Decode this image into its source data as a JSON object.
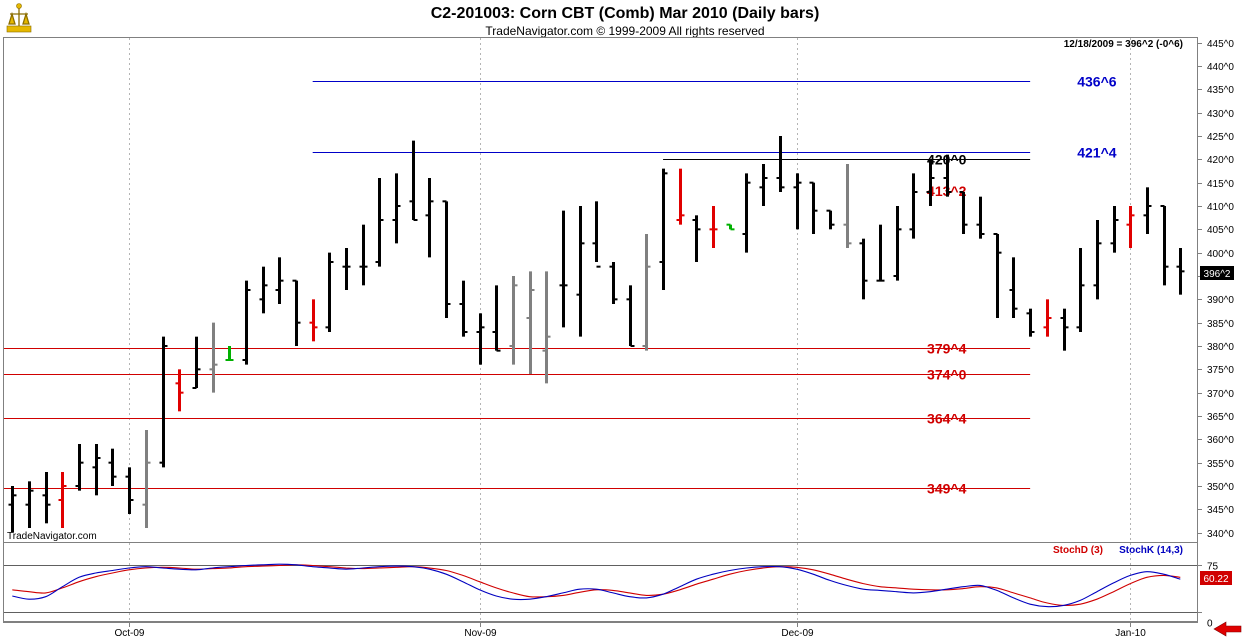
{
  "header": {
    "title": "C2-201003:  Corn CBT (Comb) Mar 2010  (Daily bars)",
    "subtitle": "TradeNavigator.com © 1999-2009 All rights reserved",
    "watermark": "TradeNavigator.com",
    "last_info": "12/18/2009 = 396^2 (-0^6)",
    "last_badge": "396^2"
  },
  "stoch_legend": {
    "d": "StochD (3)",
    "k": "StochK (14,3)",
    "d_color": "#d00000",
    "k_color": "#0000c0"
  },
  "colors": {
    "grid": "#b4b4b4",
    "blue_level": "#0000c8",
    "red_level": "#d00000",
    "black_level": "#000000",
    "bar_black": "#000000",
    "bar_red": "#e00000",
    "bar_gray": "#808080",
    "bar_green": "#00b000"
  },
  "chart_data": [
    {
      "type": "ohlc",
      "title": "C2-201003:  Corn CBT (Comb) Mar 2010  (Daily bars)",
      "y_axis_ticks": [
        "340^0",
        "345^0",
        "350^0",
        "355^0",
        "360^0",
        "365^0",
        "370^0",
        "375^0",
        "380^0",
        "385^0",
        "390^0",
        "395^0",
        "400^0",
        "405^0",
        "410^0",
        "415^0",
        "420^0",
        "425^0",
        "430^0",
        "435^0",
        "440^0",
        "445^0"
      ],
      "ylim": [
        338,
        446
      ],
      "x_axis_labels": [
        {
          "label": "Oct-09",
          "x": 7
        },
        {
          "label": "Nov-09",
          "x": 28
        },
        {
          "label": "Dec-09",
          "x": 47
        },
        {
          "label": "Jan-10",
          "x": 67
        }
      ],
      "xlim": [
        -0.5,
        71
      ],
      "levels": [
        {
          "label": "436^6",
          "value": 436.75,
          "color": "blue",
          "x_from": 18
        },
        {
          "label": "421^4",
          "value": 421.5,
          "color": "blue",
          "x_from": 18
        },
        {
          "label": "420^0",
          "value": 420.0,
          "color": "black",
          "x_from": 39
        },
        {
          "label": "413^2",
          "value": null,
          "color": "red",
          "x_from": null
        },
        {
          "label": "379^4",
          "value": 379.5,
          "color": "red",
          "x_from": -0.5
        },
        {
          "label": "374^0",
          "value": 374.0,
          "color": "red",
          "x_from": -0.5
        },
        {
          "label": "364^4",
          "value": 364.5,
          "color": "red",
          "x_from": -0.5
        },
        {
          "label": "349^4",
          "value": 349.5,
          "color": "red",
          "x_from": -0.5
        }
      ],
      "bars": [
        {
          "o": 346,
          "h": 350,
          "l": 340,
          "c": 348,
          "col": "black"
        },
        {
          "o": 346,
          "h": 351,
          "l": 341,
          "c": 349,
          "col": "black"
        },
        {
          "o": 348,
          "h": 353,
          "l": 342,
          "c": 346,
          "col": "black"
        },
        {
          "o": 347,
          "h": 353,
          "l": 341,
          "c": 350,
          "col": "red"
        },
        {
          "o": 350,
          "h": 359,
          "l": 349,
          "c": 355,
          "col": "black"
        },
        {
          "o": 354,
          "h": 359,
          "l": 348,
          "c": 356,
          "col": "black"
        },
        {
          "o": 355,
          "h": 358,
          "l": 350,
          "c": 352,
          "col": "black"
        },
        {
          "o": 352,
          "h": 354,
          "l": 344,
          "c": 347,
          "col": "black"
        },
        {
          "o": 346,
          "h": 362,
          "l": 341,
          "c": 355,
          "col": "gray"
        },
        {
          "o": 355,
          "h": 382,
          "l": 354,
          "c": 380,
          "col": "black"
        },
        {
          "o": 372,
          "h": 375,
          "l": 366,
          "c": 370,
          "col": "red"
        },
        {
          "o": 371,
          "h": 382,
          "l": 371,
          "c": 375,
          "col": "black"
        },
        {
          "o": 375,
          "h": 385,
          "l": 370,
          "c": 376,
          "col": "gray"
        },
        {
          "o": 377,
          "h": 380,
          "l": 377,
          "c": 377,
          "col": "green"
        },
        {
          "o": 377,
          "h": 394,
          "l": 376,
          "c": 392,
          "col": "black"
        },
        {
          "o": 390,
          "h": 397,
          "l": 387,
          "c": 393,
          "col": "black"
        },
        {
          "o": 392,
          "h": 399,
          "l": 389,
          "c": 394,
          "col": "black"
        },
        {
          "o": 394,
          "h": 394,
          "l": 380,
          "c": 385,
          "col": "black"
        },
        {
          "o": 385,
          "h": 390,
          "l": 381,
          "c": 384,
          "col": "red"
        },
        {
          "o": 384,
          "h": 400,
          "l": 383,
          "c": 398,
          "col": "black"
        },
        {
          "o": 397,
          "h": 401,
          "l": 392,
          "c": 397,
          "col": "black"
        },
        {
          "o": 397,
          "h": 406,
          "l": 393,
          "c": 397,
          "col": "black"
        },
        {
          "o": 398,
          "h": 416,
          "l": 397,
          "c": 407,
          "col": "black"
        },
        {
          "o": 407,
          "h": 417,
          "l": 402,
          "c": 410,
          "col": "black"
        },
        {
          "o": 411,
          "h": 424,
          "l": 407,
          "c": 407,
          "col": "black"
        },
        {
          "o": 408,
          "h": 416,
          "l": 399,
          "c": 411,
          "col": "black"
        },
        {
          "o": 411,
          "h": 411,
          "l": 386,
          "c": 389,
          "col": "black"
        },
        {
          "o": 389,
          "h": 394,
          "l": 382,
          "c": 383,
          "col": "black"
        },
        {
          "o": 383,
          "h": 387,
          "l": 376,
          "c": 384,
          "col": "black"
        },
        {
          "o": 383,
          "h": 393,
          "l": 379,
          "c": 379,
          "col": "black"
        },
        {
          "o": 380,
          "h": 395,
          "l": 376,
          "c": 393,
          "col": "gray"
        },
        {
          "o": 386,
          "h": 396,
          "l": 374,
          "c": 392,
          "col": "gray"
        },
        {
          "o": 379,
          "h": 396,
          "l": 372,
          "c": 382,
          "col": "gray"
        },
        {
          "o": 393,
          "h": 409,
          "l": 384,
          "c": 393,
          "col": "black"
        },
        {
          "o": 391,
          "h": 410,
          "l": 382,
          "c": 402,
          "col": "black"
        },
        {
          "o": 402,
          "h": 411,
          "l": 398,
          "c": 397,
          "col": "black"
        },
        {
          "o": 397,
          "h": 398,
          "l": 389,
          "c": 390,
          "col": "black"
        },
        {
          "o": 390,
          "h": 393,
          "l": 380,
          "c": 380,
          "col": "black"
        },
        {
          "o": 380,
          "h": 404,
          "l": 379,
          "c": 397,
          "col": "gray"
        },
        {
          "o": 398,
          "h": 418,
          "l": 392,
          "c": 417,
          "col": "black"
        },
        {
          "o": 407,
          "h": 418,
          "l": 406,
          "c": 408,
          "col": "red"
        },
        {
          "o": 407,
          "h": 408,
          "l": 398,
          "c": 405,
          "col": "black"
        },
        {
          "o": 405,
          "h": 410,
          "l": 401,
          "c": 405,
          "col": "red"
        },
        {
          "o": 406,
          "h": 406,
          "l": 405,
          "c": 405,
          "col": "green"
        },
        {
          "o": 404,
          "h": 417,
          "l": 400,
          "c": 415,
          "col": "black"
        },
        {
          "o": 414,
          "h": 419,
          "l": 410,
          "c": 416,
          "col": "black"
        },
        {
          "o": 416,
          "h": 425,
          "l": 413,
          "c": 414,
          "col": "black"
        },
        {
          "o": 414,
          "h": 417,
          "l": 405,
          "c": 415,
          "col": "black"
        },
        {
          "o": 415,
          "h": 415,
          "l": 404,
          "c": 409,
          "col": "black"
        },
        {
          "o": 409,
          "h": 409,
          "l": 405,
          "c": 406,
          "col": "black"
        },
        {
          "o": 406,
          "h": 419,
          "l": 401,
          "c": 402,
          "col": "gray"
        },
        {
          "o": 402,
          "h": 403,
          "l": 390,
          "c": 394,
          "col": "black"
        },
        {
          "o": 394,
          "h": 406,
          "l": 394,
          "c": 394,
          "col": "black"
        },
        {
          "o": 395,
          "h": 410,
          "l": 394,
          "c": 405,
          "col": "black"
        },
        {
          "o": 405,
          "h": 417,
          "l": 403,
          "c": 413,
          "col": "black"
        },
        {
          "o": 413,
          "h": 420,
          "l": 410,
          "c": 416,
          "col": "black"
        },
        {
          "o": 416,
          "h": 421,
          "l": 412,
          "c": 413,
          "col": "black"
        },
        {
          "o": 413,
          "h": 413,
          "l": 404,
          "c": 406,
          "col": "black"
        },
        {
          "o": 406,
          "h": 412,
          "l": 403,
          "c": 404,
          "col": "black"
        },
        {
          "o": 404,
          "h": 404,
          "l": 386,
          "c": 400,
          "col": "black"
        },
        {
          "o": 392,
          "h": 399,
          "l": 386,
          "c": 388,
          "col": "black"
        },
        {
          "o": 387,
          "h": 388,
          "l": 382,
          "c": 383,
          "col": "black"
        },
        {
          "o": 384,
          "h": 390,
          "l": 382,
          "c": 386,
          "col": "red"
        },
        {
          "o": 386,
          "h": 388,
          "l": 379,
          "c": 384,
          "col": "black"
        },
        {
          "o": 384,
          "h": 401,
          "l": 383,
          "c": 393,
          "col": "black"
        },
        {
          "o": 393,
          "h": 407,
          "l": 390,
          "c": 402,
          "col": "black"
        },
        {
          "o": 402,
          "h": 410,
          "l": 400,
          "c": 407,
          "col": "black"
        },
        {
          "o": 406,
          "h": 410,
          "l": 401,
          "c": 408,
          "col": "red"
        },
        {
          "o": 408,
          "h": 414,
          "l": 404,
          "c": 410,
          "col": "black"
        },
        {
          "o": 410,
          "h": 410,
          "l": 393,
          "c": 397,
          "col": "black"
        },
        {
          "o": 397,
          "h": 401,
          "l": 391,
          "c": 396,
          "col": "black"
        }
      ]
    },
    {
      "type": "line",
      "title": "",
      "y_axis_ticks": [
        "0",
        "75"
      ],
      "ylim": [
        -15,
        110
      ],
      "last_value_label": "60.22",
      "series": [
        {
          "name": "StochD (3)",
          "color": "#d00000",
          "values": [
            35,
            32,
            30,
            38,
            48,
            56,
            62,
            67,
            70,
            71,
            70,
            68,
            69,
            70,
            72,
            73,
            74,
            75,
            74,
            72,
            70,
            69,
            70,
            71,
            72,
            70,
            66,
            58,
            48,
            38,
            30,
            24,
            24,
            26,
            31,
            35,
            34,
            30,
            26,
            28,
            35,
            44,
            52,
            60,
            66,
            70,
            72,
            71,
            67,
            60,
            52,
            45,
            40,
            38,
            36,
            35,
            35,
            37,
            40,
            38,
            30,
            22,
            14,
            10,
            12,
            20,
            32,
            45,
            55,
            58,
            55
          ]
        },
        {
          "name": "StochK (14,3)",
          "color": "#0000c0",
          "values": [
            25,
            20,
            24,
            40,
            55,
            62,
            66,
            70,
            72,
            70,
            68,
            67,
            70,
            72,
            74,
            75,
            76,
            75,
            72,
            70,
            68,
            70,
            72,
            73,
            72,
            68,
            60,
            48,
            35,
            25,
            20,
            20,
            24,
            30,
            36,
            36,
            30,
            24,
            22,
            28,
            40,
            52,
            60,
            66,
            70,
            72,
            72,
            68,
            60,
            50,
            42,
            36,
            34,
            32,
            30,
            32,
            36,
            40,
            42,
            34,
            22,
            12,
            8,
            10,
            18,
            32,
            46,
            58,
            64,
            60,
            52
          ]
        }
      ]
    }
  ]
}
